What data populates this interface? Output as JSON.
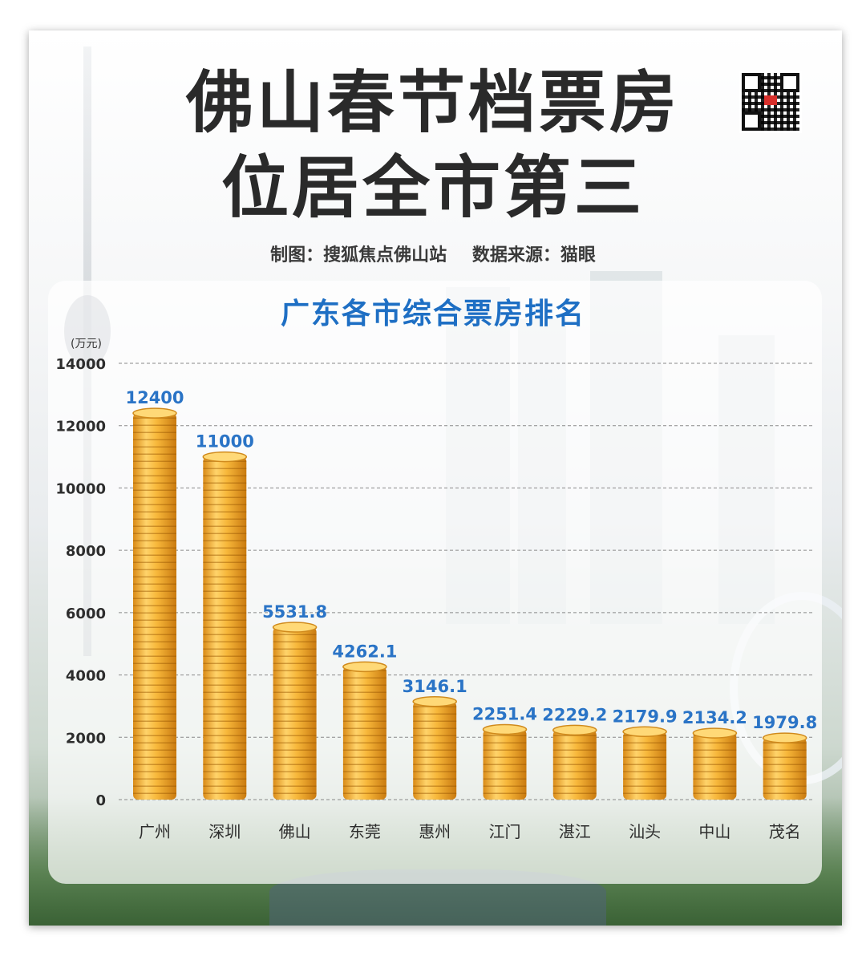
{
  "header": {
    "title_line1": "佛山春节档票房",
    "title_line2": "位居全市第三",
    "credit_maker": "制图：搜狐焦点佛山站",
    "credit_source": "数据来源：猫眼"
  },
  "qr_code": {
    "icon": "qr-code-icon",
    "accent": "#d9302c"
  },
  "colors": {
    "title": "#2a2a2a",
    "chart_title": "#1e6fc4",
    "value_label": "#2a74c6",
    "coin": "#f0a928"
  },
  "chart_data": {
    "type": "bar",
    "title": "广东各市综合票房排名",
    "unit_label": "(万元)",
    "categories": [
      "广州",
      "深圳",
      "佛山",
      "东莞",
      "惠州",
      "江门",
      "湛江",
      "汕头",
      "中山",
      "茂名"
    ],
    "values": [
      12400,
      11000,
      5531.8,
      4262.1,
      3146.1,
      2251.4,
      2229.2,
      2179.9,
      2134.2,
      1979.8
    ],
    "value_labels": [
      "12400",
      "11000",
      "5531.8",
      "4262.1",
      "3146.1",
      "2251.4",
      "2229.2",
      "2179.9",
      "2134.2",
      "1979.8"
    ],
    "yticks": [
      "0",
      "2000",
      "4000",
      "6000",
      "8000",
      "10000",
      "12000",
      "14000"
    ],
    "ylim": [
      0,
      14000
    ],
    "grid": true,
    "bar_style": "stacked-gold-coins"
  }
}
